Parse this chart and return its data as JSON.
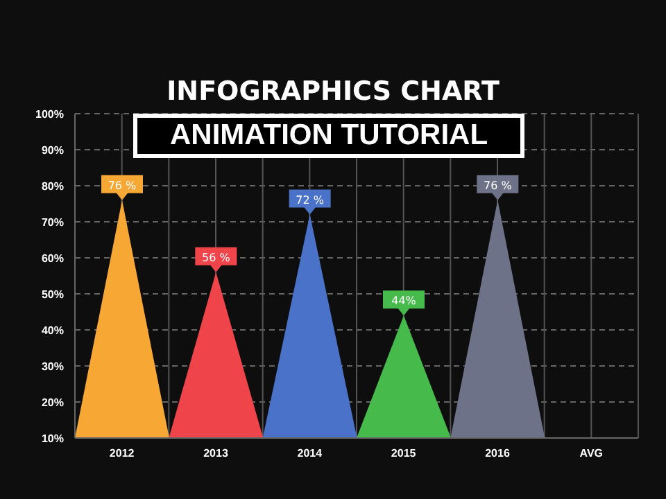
{
  "chart_data": {
    "type": "bar",
    "title": "INFOGRAPHICS CHART",
    "subtitle": "ANIMATION TUTORIAL",
    "categories": [
      "2012",
      "2013",
      "2014",
      "2015",
      "2016",
      "AVG"
    ],
    "values": [
      76,
      56,
      72,
      44,
      76,
      null
    ],
    "colors": [
      "#f7a733",
      "#f0444b",
      "#4a72c8",
      "#46bb4c",
      "#6d7289",
      null
    ],
    "value_labels": [
      "76 %",
      "56 %",
      "72 %",
      "44%",
      "76 %",
      null
    ],
    "ylim": [
      10,
      100
    ],
    "yticks": [
      {
        "value": 10,
        "label": "10%"
      },
      {
        "value": 20,
        "label": "20%"
      },
      {
        "value": 30,
        "label": "30%"
      },
      {
        "value": 40,
        "label": "40%"
      },
      {
        "value": 50,
        "label": "50%"
      },
      {
        "value": 60,
        "label": "60%"
      },
      {
        "value": 70,
        "label": "70%"
      },
      {
        "value": 80,
        "label": "80%"
      },
      {
        "value": 90,
        "label": "90%"
      },
      {
        "value": 100,
        "label": "100%"
      }
    ],
    "grid": true,
    "legend": false
  }
}
